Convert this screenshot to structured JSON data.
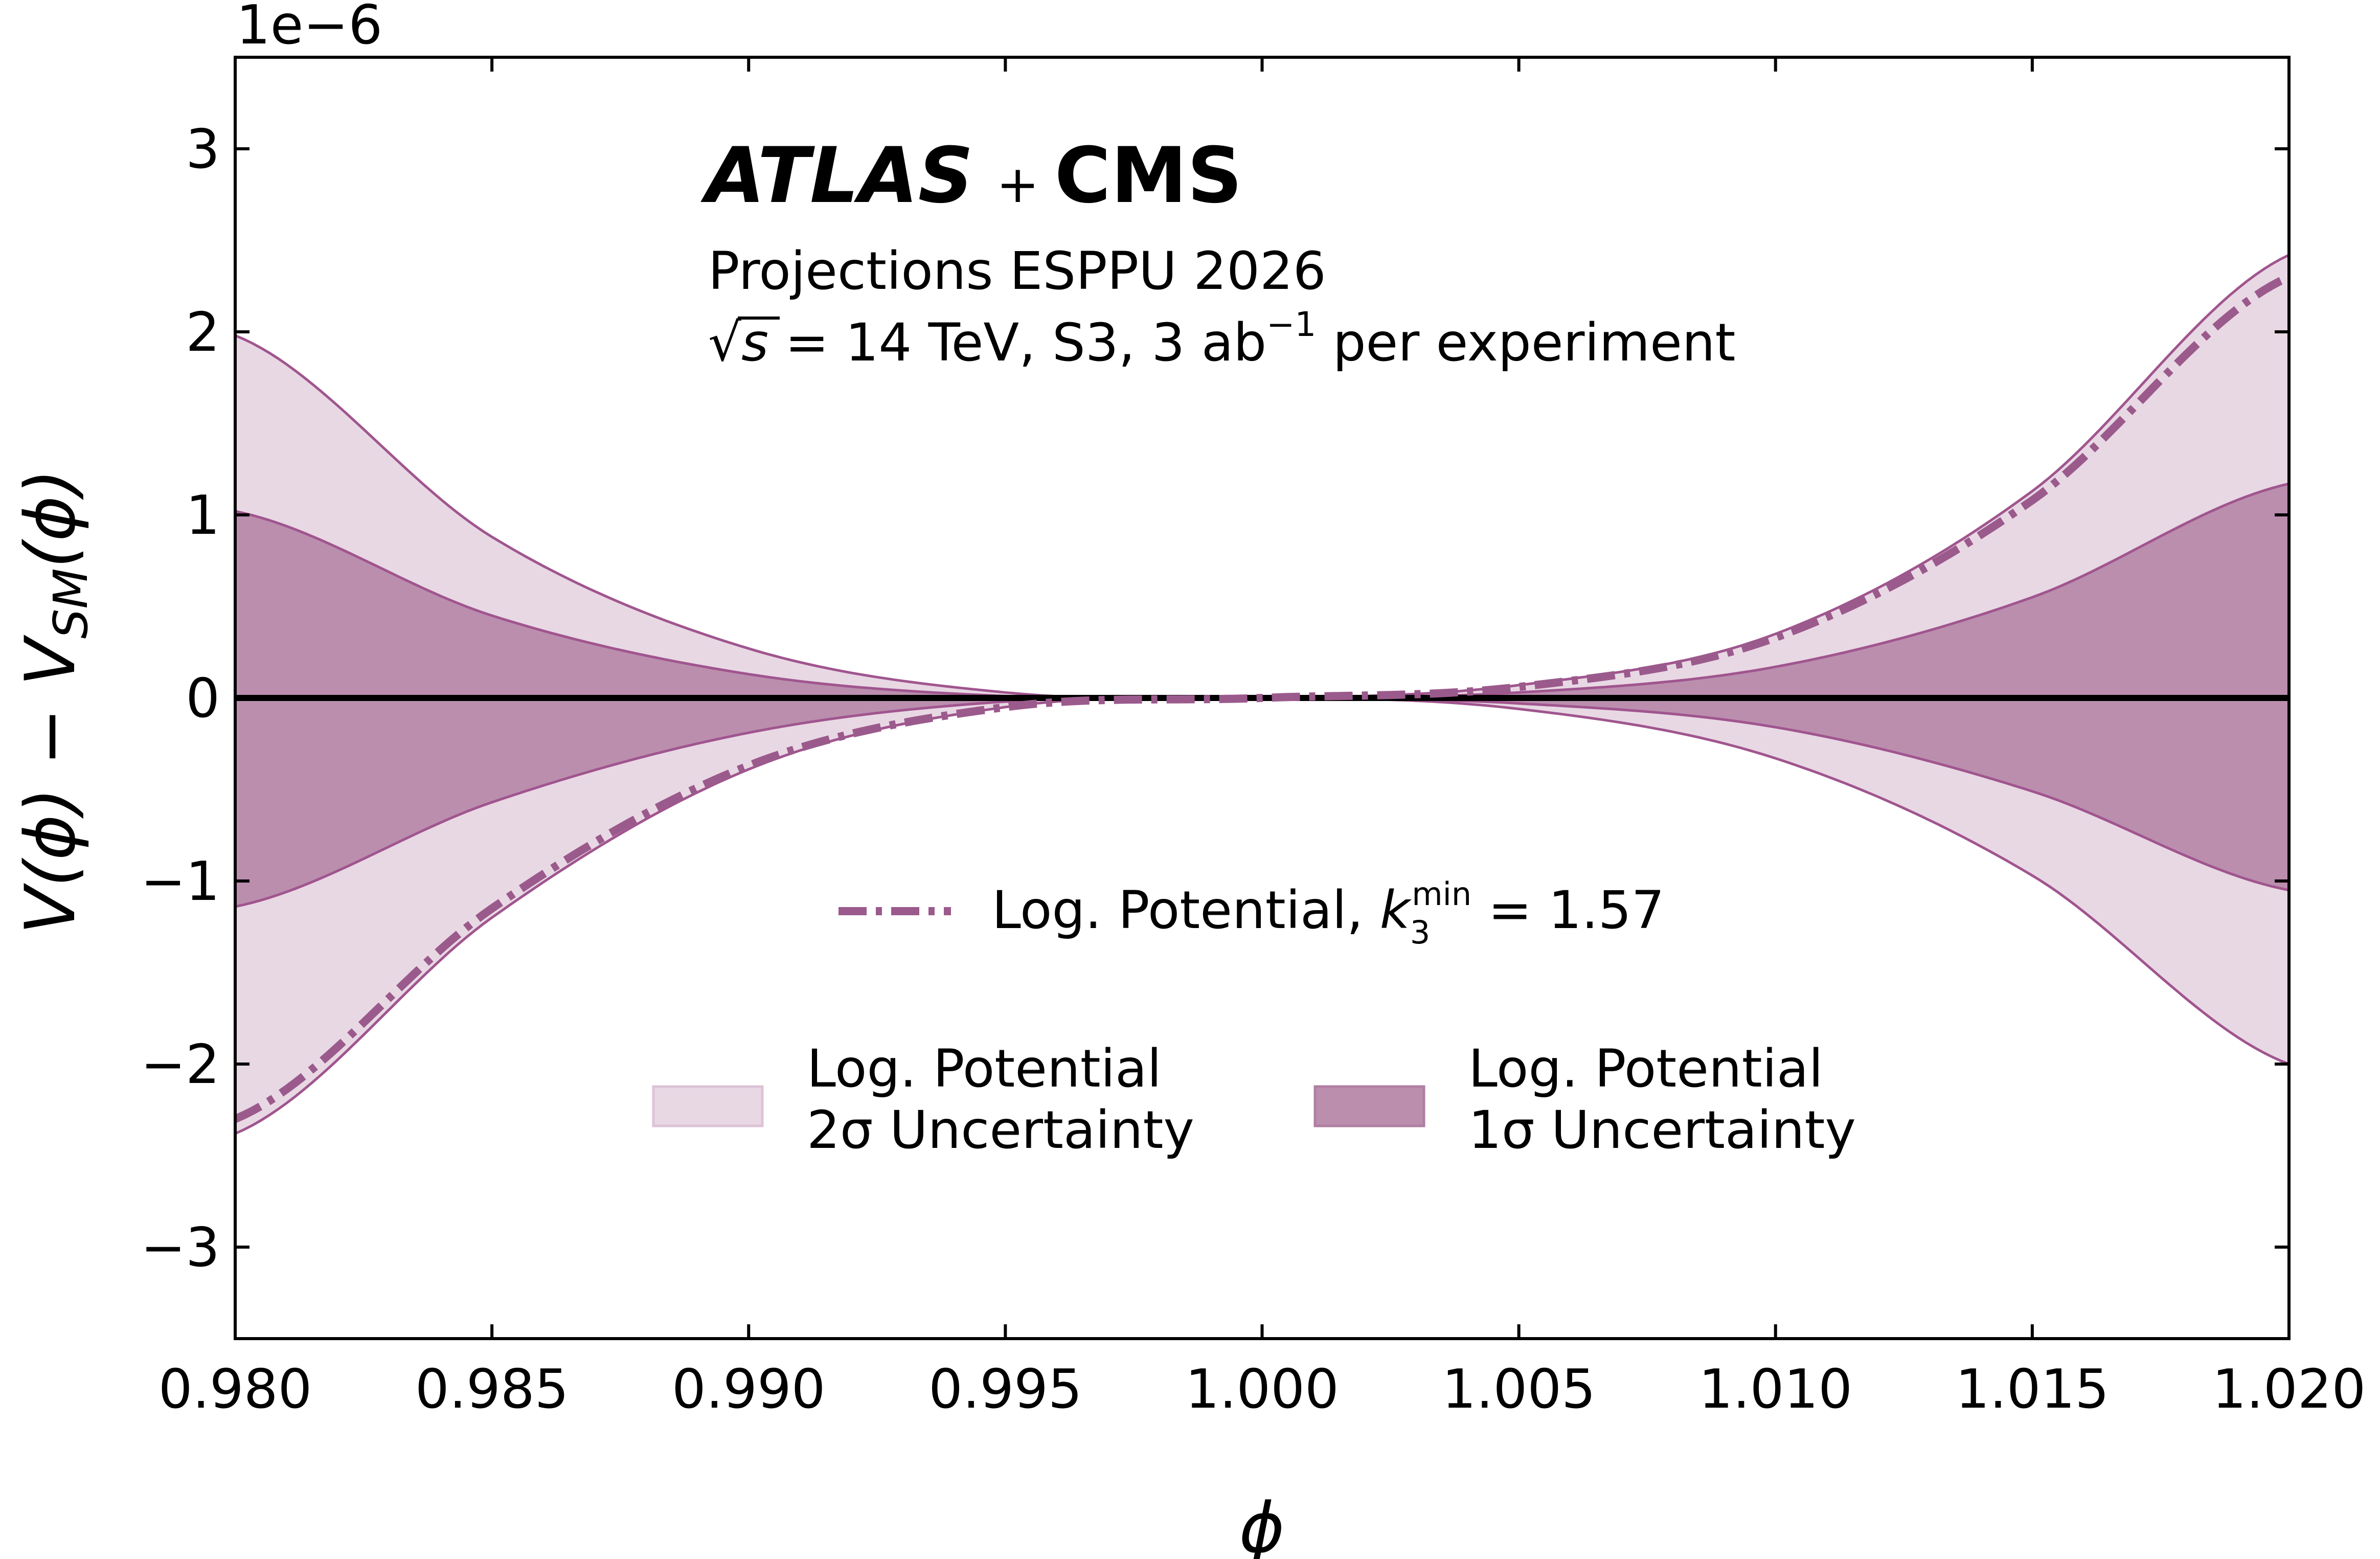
{
  "chart_data": {
    "type": "area",
    "xlabel": "ϕ",
    "ylabel": "V(ϕ) − V_SM(ϕ)",
    "y_scale_label": "1e−6",
    "y_multiplier": 1e-06,
    "xlim": [
      0.98,
      1.02
    ],
    "ylim": [
      -3.5e-06,
      3.5e-06
    ],
    "x_ticks": [
      0.98,
      0.985,
      0.99,
      0.995,
      1.0,
      1.005,
      1.01,
      1.015,
      1.02
    ],
    "x_tick_labels": [
      "0.980",
      "0.985",
      "0.990",
      "0.995",
      "1.000",
      "1.005",
      "1.010",
      "1.015",
      "1.020"
    ],
    "y_ticks": [
      -3e-06,
      -2e-06,
      -1e-06,
      0,
      1e-06,
      2e-06,
      3e-06
    ],
    "y_tick_labels": [
      "−3",
      "−2",
      "−1",
      "0",
      "1",
      "2",
      "3"
    ],
    "annotations": {
      "experiment_left": "ATLAS",
      "experiment_plus": "+",
      "experiment_right": "CMS",
      "line1": "Projections ESPPU 2026",
      "line2_sqrt": "√",
      "line2_s": "s",
      "line2_main": " = 14 TeV, S3, 3 ab",
      "line2_sup": "−1",
      "line2_tail": " per experiment"
    },
    "series": [
      {
        "name": "Log. Potential, k3min = 1.57",
        "label_prefix": "Log. Potential, ",
        "label_k": "k",
        "label_sub": "3",
        "label_sup": "min",
        "label_value": " = 1.57",
        "kind": "line",
        "style": "dash-dot",
        "color": "#9b5a8c",
        "x": [
          0.98,
          0.985,
          0.99,
          0.995,
          1.0,
          1.005,
          1.01,
          1.015,
          1.02
        ],
        "values": [
          -2.3e-06,
          -1.15e-06,
          -3.7e-07,
          -5e-08,
          0,
          6e-08,
          3.3e-07,
          1.08e-06,
          2.3e-06
        ]
      },
      {
        "name": "Log. Potential 2σ Uncertainty",
        "label_line1": "Log. Potential",
        "label_line2": "2σ Uncertainty",
        "kind": "band",
        "color": "#e8d8e4",
        "edge_color": "#a0558e",
        "x": [
          0.98,
          0.985,
          0.99,
          0.995,
          1.0,
          1.005,
          1.01,
          1.015,
          1.02
        ],
        "lower": [
          -2.38e-06,
          -1.2e-06,
          -3.9e-07,
          -5e-08,
          0,
          -6e-08,
          -3.3e-07,
          -9.7e-07,
          -2e-06
        ],
        "upper": [
          1.98e-06,
          8.8e-07,
          2.7e-07,
          3e-08,
          0,
          7e-08,
          3.5e-07,
          1.13e-06,
          2.42e-06
        ]
      },
      {
        "name": "Log. Potential 1σ Uncertainty",
        "label_line1": "Log. Potential",
        "label_line2": "1σ Uncertainty",
        "kind": "band",
        "color": "#bb8eae",
        "edge_color": "#a0558e",
        "x": [
          0.98,
          0.985,
          0.99,
          0.995,
          1.0,
          1.005,
          1.01,
          1.015,
          1.02
        ],
        "lower": [
          -1.14e-06,
          -5.7e-07,
          -1.9e-07,
          -2e-08,
          0,
          -3e-08,
          -1.6e-07,
          -5.1e-07,
          -1.05e-06
        ],
        "upper": [
          1.02e-06,
          4.5e-07,
          1.3e-07,
          1e-08,
          0,
          3e-08,
          1.7e-07,
          5.5e-07,
          1.17e-06
        ]
      }
    ],
    "reference_line": {
      "y": 0,
      "color": "#000000"
    },
    "grid": false,
    "legend": "lower-center"
  }
}
